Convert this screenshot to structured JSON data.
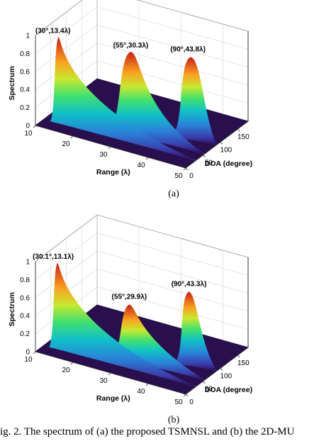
{
  "chart_data": [
    {
      "type": "surface",
      "panel_label": "(a)",
      "xlabel": "DOA (degree)",
      "ylabel": "Range (λ)",
      "zlabel": "Spectrum",
      "xlim": [
        0,
        180
      ],
      "ylim": [
        10,
        50
      ],
      "zlim": [
        0,
        1
      ],
      "x_ticks": [
        "0",
        "50",
        "100",
        "150"
      ],
      "y_ticks": [
        "10",
        "20",
        "30",
        "40",
        "50"
      ],
      "z_ticks": [
        "0",
        "0.2",
        "0.4",
        "0.6",
        "0.8",
        "1"
      ],
      "grid": true,
      "colormap": "jet",
      "peaks": [
        {
          "doa": 30,
          "range": 13.4,
          "value": 0.95,
          "label": "(30°,13.4λ)"
        },
        {
          "doa": 55,
          "range": 30.3,
          "value": 0.9,
          "label": "(55°,30.3λ)"
        },
        {
          "doa": 90,
          "range": 43.8,
          "value": 0.9,
          "label": "(90°,43.8λ)"
        }
      ]
    },
    {
      "type": "surface",
      "panel_label": "(b)",
      "xlabel": "DOA (degree)",
      "ylabel": "Range (λ)",
      "zlabel": "Spectrum",
      "xlim": [
        0,
        180
      ],
      "ylim": [
        10,
        50
      ],
      "zlim": [
        0,
        1
      ],
      "x_ticks": [
        "0",
        "50",
        "100",
        "150"
      ],
      "y_ticks": [
        "10",
        "20",
        "30",
        "40",
        "50"
      ],
      "z_ticks": [
        "0",
        "0.2",
        "0.4",
        "0.6",
        "0.8",
        "1"
      ],
      "grid": true,
      "colormap": "jet",
      "peaks": [
        {
          "doa": 30.1,
          "range": 13.1,
          "value": 0.95,
          "label": "(30.1°,13.1λ)"
        },
        {
          "doa": 55,
          "range": 29.9,
          "value": 0.6,
          "label": "(55°,29.9λ)"
        },
        {
          "doa": 90,
          "range": 43.3,
          "value": 0.8,
          "label": "(90°,43.3λ)"
        }
      ]
    }
  ],
  "caption": "ig. 2.  The spectrum of (a) the proposed TSMNSL and (b) the 2D-MU"
}
